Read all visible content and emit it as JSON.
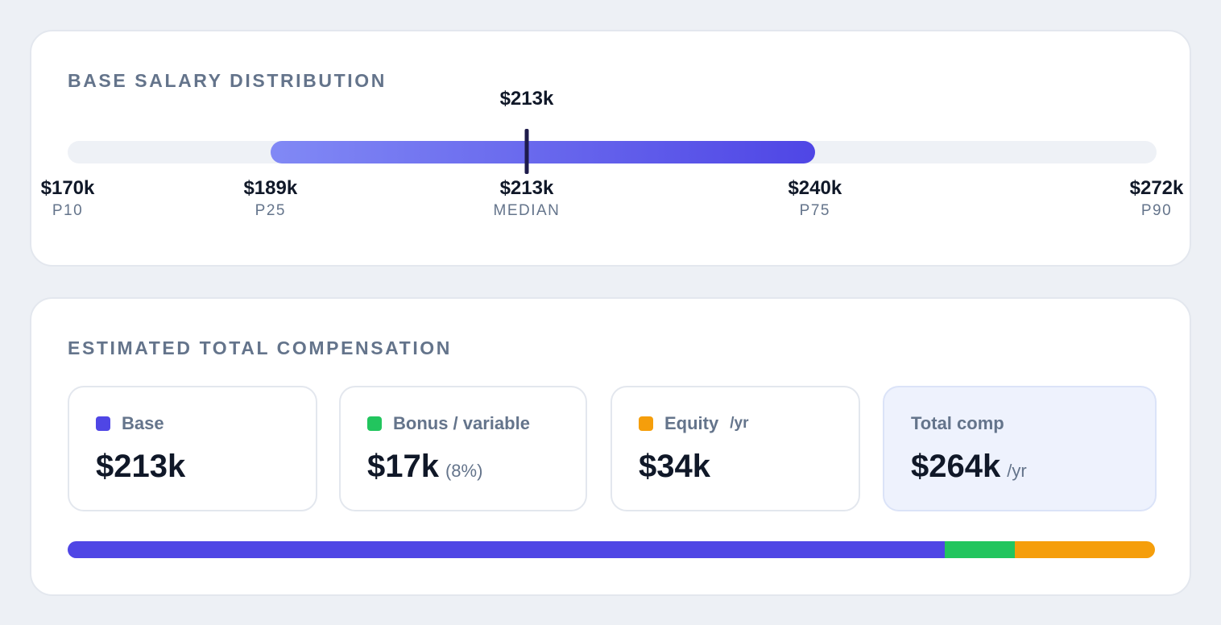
{
  "distribution": {
    "title": "BASE SALARY DISTRIBUTION",
    "median_top": "$213k",
    "range_min": 170,
    "range_max": 272,
    "percentiles": [
      {
        "value": 170,
        "value_label": "$170k",
        "label": "P10"
      },
      {
        "value": 189,
        "value_label": "$189k",
        "label": "P25"
      },
      {
        "value": 213,
        "value_label": "$213k",
        "label": "MEDIAN"
      },
      {
        "value": 240,
        "value_label": "$240k",
        "label": "P75"
      },
      {
        "value": 272,
        "value_label": "$272k",
        "label": "P90"
      }
    ],
    "colors": {
      "iqr_start": "#8189f5",
      "iqr_end": "#4f46e5",
      "median_tick": "#1e1b4b",
      "track": "#eef1f6"
    }
  },
  "compensation": {
    "title": "ESTIMATED TOTAL COMPENSATION",
    "tiles": [
      {
        "key": "base",
        "label": "Base",
        "unit": "",
        "value": "$213k",
        "suffix": "",
        "color": "#4f46e5"
      },
      {
        "key": "bonus",
        "label": "Bonus / variable",
        "unit": "",
        "value": "$17k",
        "suffix": "(8%)",
        "color": "#22c55e"
      },
      {
        "key": "equity",
        "label": "Equity",
        "unit": "/yr",
        "value": "$34k",
        "suffix": "",
        "color": "#f59e0b"
      },
      {
        "key": "total",
        "label": "Total comp",
        "unit": "",
        "value": "$264k",
        "suffix": "/yr",
        "color": ""
      }
    ],
    "breakdown": [
      {
        "name": "Base",
        "amount": 213,
        "color": "#4f46e5"
      },
      {
        "name": "Bonus / variable",
        "amount": 17,
        "color": "#22c55e"
      },
      {
        "name": "Equity",
        "amount": 34,
        "color": "#f59e0b"
      }
    ]
  }
}
